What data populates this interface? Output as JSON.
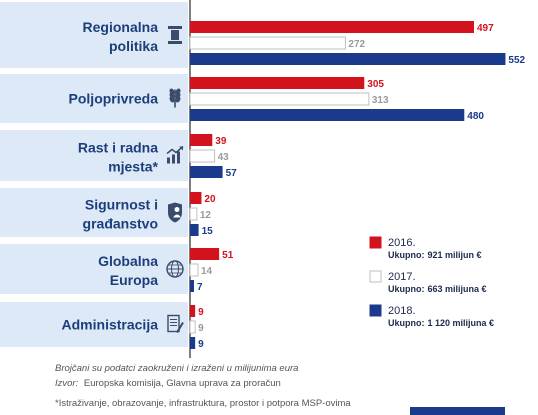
{
  "chart_data": {
    "type": "bar",
    "orientation": "horizontal",
    "categories": [
      {
        "lines": [
          "Regionalna",
          "politika"
        ],
        "icon": "pillar-icon"
      },
      {
        "lines": [
          "Poljoprivreda"
        ],
        "icon": "wheat-icon"
      },
      {
        "lines": [
          "Rast i radna",
          "mjesta*"
        ],
        "icon": "growth-chart-icon"
      },
      {
        "lines": [
          "Sigurnost i",
          "građanstvo"
        ],
        "icon": "shield-icon"
      },
      {
        "lines": [
          "Globalna",
          "Europa"
        ],
        "icon": "globe-icon"
      },
      {
        "lines": [
          "Administracija"
        ],
        "icon": "document-icon"
      }
    ],
    "series": [
      {
        "name": "2016.",
        "values": [
          497,
          305,
          39,
          20,
          51,
          9
        ],
        "color": "#d2121c",
        "stroke": "#d2121c",
        "label_color": "#d2121c",
        "total": "921 milijun €"
      },
      {
        "name": "2017.",
        "values": [
          272,
          313,
          43,
          12,
          14,
          9
        ],
        "color": "#ffffff",
        "stroke": "#bfbfbf",
        "label_color": "#9a9a9a",
        "total": "663 milijuna €"
      },
      {
        "name": "2018.",
        "values": [
          552,
          480,
          57,
          15,
          7,
          9
        ],
        "color": "#1a3a8c",
        "stroke": "#1a3a8c",
        "label_color": "#1a3a8c",
        "total": "1 120 milijuna €"
      }
    ],
    "total_label": "Ukupno:",
    "xlim": [
      0,
      560
    ],
    "grid": false,
    "legend_position": "bottom-right",
    "colors": {
      "category_box": "#dde9f6",
      "category_text": "#1c3f7c",
      "icon": "#3b4b6b",
      "axis": "#555555",
      "footer_bar": "#1a3a8c"
    }
  },
  "notes": {
    "rounding": "Brojčani su podatci zaokruženi i izraženi u milijunima eura",
    "source_label": "Izvor:",
    "source": "Europska komisija, Glavna uprava za proračun",
    "footnote": "*Istraživanje, obrazovanje, infrastruktura, prostor i potpora MSP-ovima"
  }
}
